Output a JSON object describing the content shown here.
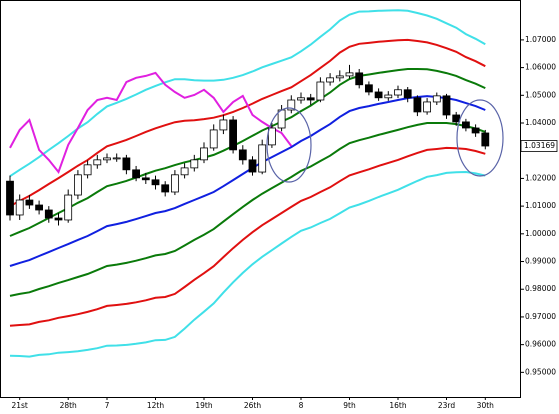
{
  "chart_data": {
    "type": "candlestick",
    "categories": [
      null,
      "21st",
      null,
      null,
      null,
      null,
      "28th",
      null,
      null,
      null,
      "7",
      null,
      null,
      null,
      null,
      "12th",
      null,
      null,
      null,
      null,
      "19th",
      null,
      null,
      null,
      null,
      "26th",
      null,
      null,
      null,
      null,
      "8",
      null,
      null,
      null,
      null,
      "9th",
      null,
      null,
      null,
      null,
      "16th",
      null,
      null,
      null,
      null,
      "23rd",
      null,
      null,
      null,
      "30th",
      null
    ],
    "ylim": [
      0.9411,
      1.0844
    ],
    "yticks": [
      {
        "value": 1.07,
        "label": "1.07000"
      },
      {
        "value": 1.06,
        "label": "1.06000"
      },
      {
        "value": 1.05,
        "label": "1.05000"
      },
      {
        "value": 1.04,
        "label": "1.04000"
      },
      {
        "value": 1.02,
        "label": "1.02000"
      },
      {
        "value": 1.01,
        "label": "1.01000"
      },
      {
        "value": 1.0,
        "label": "1.00000"
      },
      {
        "value": 0.99,
        "label": "0.99000"
      },
      {
        "value": 0.98,
        "label": "0.98000"
      },
      {
        "value": 0.97,
        "label": "0.97000"
      },
      {
        "value": 0.96,
        "label": "0.96000"
      },
      {
        "value": 0.95,
        "label": "0.95000"
      }
    ],
    "last_price": 1.03169,
    "ohlc": {
      "open": [
        1.019,
        1.0068,
        1.0122,
        1.0104,
        1.0086,
        1.0057,
        1.005,
        1.014,
        1.0213,
        1.0249,
        1.0267,
        1.0274,
        1.0274,
        1.0231,
        1.0202,
        1.0195,
        1.0177,
        1.0151,
        1.0213,
        1.0238,
        1.0267,
        1.031,
        1.0375,
        1.0411,
        1.0303,
        1.0267,
        1.0223,
        1.0321,
        1.0382,
        1.0447,
        1.0483,
        1.0491,
        1.0483,
        1.0548,
        1.0563,
        1.057,
        1.0581,
        1.0538,
        1.0512,
        1.0491,
        1.0501,
        1.052,
        1.0491,
        1.044,
        1.0476,
        1.0498,
        1.0429,
        1.0404,
        1.0382,
        1.0364
      ],
      "high": [
        1.021,
        1.0142,
        1.014,
        1.012,
        1.01,
        1.0075,
        1.016,
        1.023,
        1.0265,
        1.0285,
        1.029,
        1.029,
        1.0285,
        1.0245,
        1.022,
        1.021,
        1.019,
        1.023,
        1.0255,
        1.0285,
        1.033,
        1.0395,
        1.043,
        1.0425,
        1.032,
        1.028,
        1.034,
        1.04,
        1.0465,
        1.05,
        1.051,
        1.0505,
        1.0565,
        1.058,
        1.059,
        1.061,
        1.0595,
        1.055,
        1.0525,
        1.0515,
        1.0535,
        1.053,
        1.05,
        1.049,
        1.051,
        1.0505,
        1.044,
        1.0415,
        1.0395,
        1.0375
      ],
      "low": [
        1.0048,
        1.005,
        1.009,
        1.007,
        1.004,
        1.003,
        1.004,
        1.0125,
        1.02,
        1.0235,
        1.0255,
        1.026,
        1.0215,
        1.019,
        1.018,
        1.016,
        1.0135,
        1.014,
        1.02,
        1.0225,
        1.0255,
        1.03,
        1.036,
        1.029,
        1.025,
        1.021,
        1.0215,
        1.031,
        1.037,
        1.0435,
        1.047,
        1.0465,
        1.0475,
        1.0535,
        1.055,
        1.056,
        1.0525,
        1.05,
        1.048,
        1.048,
        1.049,
        1.0475,
        1.0425,
        1.043,
        1.0465,
        1.0415,
        1.039,
        1.037,
        1.035,
        1.0305
      ],
      "close": [
        1.0068,
        1.0122,
        1.0104,
        1.0086,
        1.0057,
        1.005,
        1.014,
        1.0213,
        1.0249,
        1.0267,
        1.0274,
        1.0274,
        1.0231,
        1.0202,
        1.0195,
        1.0177,
        1.0151,
        1.0213,
        1.0238,
        1.0267,
        1.031,
        1.0375,
        1.0411,
        1.0303,
        1.0267,
        1.0223,
        1.0321,
        1.0382,
        1.0447,
        1.0483,
        1.0491,
        1.0483,
        1.0548,
        1.0563,
        1.057,
        1.0581,
        1.0538,
        1.0512,
        1.0491,
        1.0501,
        1.052,
        1.0491,
        1.044,
        1.0476,
        1.0498,
        1.0429,
        1.0404,
        1.0382,
        1.0364,
        1.0317
      ]
    },
    "lines": [
      {
        "color": "#40e0e8",
        "values": [
          1.0208,
          1.0231,
          1.0253,
          1.0277,
          1.0303,
          1.0327,
          1.0353,
          1.038,
          1.0403,
          1.0433,
          1.046,
          1.0473,
          1.0487,
          1.0503,
          1.052,
          1.0534,
          1.0547,
          1.0558,
          1.0558,
          1.0554,
          1.0553,
          1.0553,
          1.0556,
          1.0563,
          1.0573,
          1.0586,
          1.0601,
          1.0613,
          1.0625,
          1.0637,
          1.0659,
          1.0683,
          1.0711,
          1.0738,
          1.077,
          1.0791,
          1.0802,
          1.0803,
          1.0805,
          1.0806,
          1.0807,
          1.0805,
          1.0797,
          1.0788,
          1.0776,
          1.076,
          1.0744,
          1.0721,
          1.0704,
          1.0684
        ]
      },
      {
        "color": "#e01010",
        "values": [
          1.01,
          1.0119,
          1.0137,
          1.0158,
          1.018,
          1.0201,
          1.0223,
          1.0246,
          1.0266,
          1.0292,
          1.0316,
          1.0327,
          1.0339,
          1.0353,
          1.0368,
          1.0381,
          1.0392,
          1.0403,
          1.0408,
          1.041,
          1.0414,
          1.0419,
          1.0428,
          1.044,
          1.0454,
          1.047,
          1.0487,
          1.0501,
          1.0515,
          1.0529,
          1.0551,
          1.0573,
          1.0599,
          1.0624,
          1.0654,
          1.0675,
          1.0686,
          1.0689,
          1.0693,
          1.0696,
          1.0699,
          1.07,
          1.0696,
          1.0691,
          1.0682,
          1.067,
          1.0657,
          1.0638,
          1.0623,
          1.0605
        ]
      },
      {
        "color": "#0a7a0a",
        "values": [
          0.9992,
          1.0007,
          1.0021,
          1.0039,
          1.0057,
          1.0075,
          1.0093,
          1.0112,
          1.0129,
          1.0151,
          1.0172,
          1.0181,
          1.0191,
          1.0203,
          1.0216,
          1.0228,
          1.0237,
          1.0248,
          1.0258,
          1.0266,
          1.0275,
          1.0285,
          1.03,
          1.0317,
          1.0335,
          1.0354,
          1.0373,
          1.0389,
          1.0405,
          1.0421,
          1.0443,
          1.0463,
          1.0487,
          1.051,
          1.0538,
          1.0559,
          1.057,
          1.0575,
          1.0581,
          1.0586,
          1.0591,
          1.0595,
          1.0595,
          1.0594,
          1.0588,
          1.058,
          1.057,
          1.0555,
          1.0542,
          1.0526
        ]
      },
      {
        "color": "#1020e0",
        "values": [
          0.9884,
          0.9895,
          0.9905,
          0.992,
          0.9934,
          0.9949,
          0.9963,
          0.9978,
          0.9992,
          1.001,
          1.0028,
          1.0035,
          1.0043,
          1.0053,
          1.0064,
          1.0075,
          1.0082,
          1.0093,
          1.0108,
          1.0122,
          1.0136,
          1.0151,
          1.0172,
          1.0194,
          1.0216,
          1.0238,
          1.0259,
          1.0277,
          1.0295,
          1.0313,
          1.0335,
          1.0353,
          1.0375,
          1.0396,
          1.0422,
          1.0443,
          1.0454,
          1.0461,
          1.0469,
          1.0476,
          1.0483,
          1.049,
          1.0494,
          1.0497,
          1.0494,
          1.049,
          1.0483,
          1.0472,
          1.0461,
          1.0447
        ]
      },
      {
        "color": "#0a7a0a",
        "values": [
          0.9776,
          0.9783,
          0.9789,
          0.9801,
          0.9811,
          0.9823,
          0.9833,
          0.9844,
          0.9855,
          0.9869,
          0.9884,
          0.9889,
          0.9895,
          0.9903,
          0.9912,
          0.9922,
          0.9927,
          0.9938,
          0.9958,
          0.9978,
          0.9997,
          1.0017,
          1.0044,
          1.0071,
          1.0097,
          1.0122,
          1.0145,
          1.0165,
          1.0185,
          1.0205,
          1.0227,
          1.0243,
          1.0263,
          1.0282,
          1.0306,
          1.0327,
          1.0338,
          1.0347,
          1.0357,
          1.0366,
          1.0375,
          1.0385,
          1.0393,
          1.04,
          1.04,
          1.04,
          1.0396,
          1.0389,
          1.038,
          1.0368
        ]
      },
      {
        "color": "#e01010",
        "values": [
          0.9668,
          0.9671,
          0.9673,
          0.9682,
          0.9688,
          0.9697,
          0.9703,
          0.971,
          0.9718,
          0.9728,
          0.974,
          0.9743,
          0.9747,
          0.9753,
          0.976,
          0.9769,
          0.9772,
          0.9783,
          0.9808,
          0.9834,
          0.9858,
          0.9883,
          0.9916,
          0.9948,
          0.9978,
          1.0006,
          1.0031,
          1.0053,
          1.0075,
          1.0097,
          1.0119,
          1.0133,
          1.0151,
          1.0168,
          1.019,
          1.0211,
          1.0222,
          1.0233,
          1.0245,
          1.0256,
          1.0267,
          1.028,
          1.0292,
          1.0303,
          1.0306,
          1.031,
          1.0309,
          1.0306,
          1.0299,
          1.0289
        ]
      },
      {
        "color": "#40e0e8",
        "values": [
          0.956,
          0.9559,
          0.9557,
          0.9563,
          0.9565,
          0.9571,
          0.9573,
          0.9576,
          0.9581,
          0.9587,
          0.9596,
          0.9597,
          0.9599,
          0.9603,
          0.9608,
          0.9616,
          0.9617,
          0.9628,
          0.9658,
          0.969,
          0.9719,
          0.9749,
          0.9788,
          0.9825,
          0.9859,
          0.989,
          0.9917,
          0.9941,
          0.9965,
          0.9989,
          1.0011,
          1.0023,
          1.0039,
          1.0054,
          1.0074,
          1.0095,
          1.0106,
          1.0119,
          1.0133,
          1.0146,
          1.0159,
          1.0175,
          1.0191,
          1.0206,
          1.0212,
          1.022,
          1.0222,
          1.0223,
          1.0218,
          1.021
        ]
      },
      {
        "color": "#e020e0",
        "values": [
          1.031,
          1.0375,
          1.0411,
          1.0303,
          1.0267,
          1.0223,
          1.0321,
          1.0382,
          1.0447,
          1.0483,
          1.0491,
          1.0483,
          1.0548,
          1.0563,
          1.057,
          1.0581,
          1.0538,
          1.0512,
          1.0491,
          1.0501,
          1.052,
          1.0491,
          1.044,
          1.0476,
          1.0498,
          1.0429,
          1.0404,
          1.0382,
          1.0364,
          1.0317,
          null,
          null,
          null,
          null,
          null,
          null,
          null,
          null,
          null,
          null,
          null,
          null,
          null,
          null,
          null,
          null,
          null,
          null,
          null,
          null
        ]
      }
    ]
  }
}
